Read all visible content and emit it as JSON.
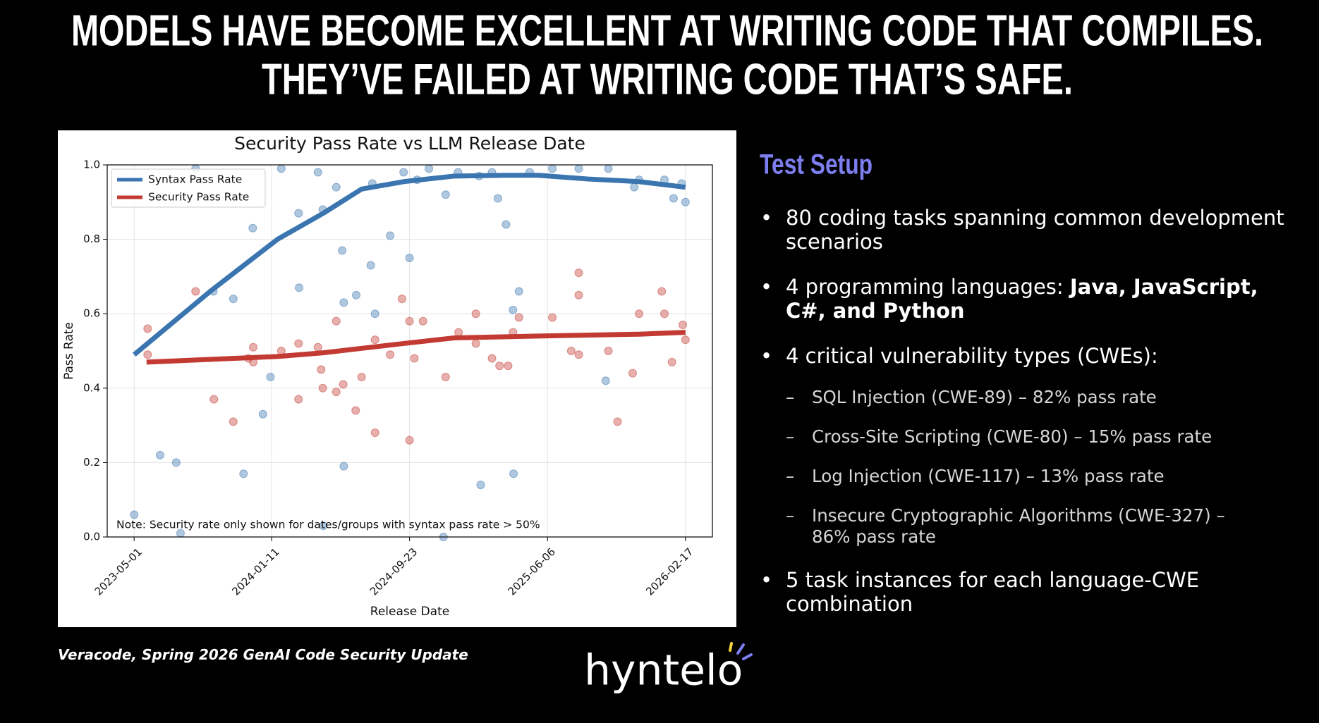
{
  "header": {
    "title": [
      "MODELS HAVE BECOME EXCELLENT AT WRITING CODE THAT COMPILES.",
      "THEY’VE FAILED AT WRITING CODE THAT’S SAFE."
    ]
  },
  "chart_data": {
    "type": "line",
    "title": "Security Pass Rate vs LLM Release Date",
    "xlabel": "Release Date",
    "ylabel": "Pass Rate",
    "annotation": "Note: Security rate only shown for dates/groups with syntax pass rate > 50%",
    "xlim": [
      "2023-03-12",
      "2026-04-08"
    ],
    "xticks": [
      "2023-05-01",
      "2024-01-11",
      "2024-09-23",
      "2025-06-06",
      "2026-02-17"
    ],
    "ylim": [
      0,
      1
    ],
    "yticks": [
      {
        "value": 0,
        "label": "0.0"
      },
      0.2,
      0.4,
      0.6,
      0.8,
      {
        "value": 1,
        "label": "1.0"
      }
    ],
    "grid": true,
    "legend": "upper left",
    "series": [
      {
        "name": "Syntax Pass Rate",
        "color": "#3a75b0",
        "x": [
          "2023-05-01",
          "2023-09-19",
          "2024-01-22",
          "2024-04-16",
          "2024-06-26",
          "2024-09-12",
          "2024-12-15",
          "2025-03-18",
          "2025-05-20",
          "2025-08-21",
          "2025-11-23",
          "2026-02-17"
        ],
        "values": [
          0.49,
          0.66,
          0.8,
          0.87,
          0.935,
          0.955,
          0.97,
          0.972,
          0.972,
          0.962,
          0.955,
          0.94
        ],
        "points": {
          "x": [
            "2023-05-01",
            "2023-06-18",
            "2023-07-18",
            "2023-07-26",
            "2023-08-23",
            "2023-09-25",
            "2023-11-01",
            "2023-11-20",
            "2023-12-07",
            "2023-12-26",
            "2024-01-09",
            "2024-01-29",
            "2024-03-02",
            "2024-03-01",
            "2024-04-06",
            "2024-04-15",
            "2024-04-16",
            "2024-05-10",
            "2024-05-21",
            "2024-05-24",
            "2024-05-24",
            "2024-06-16",
            "2024-07-13",
            "2024-07-21",
            "2024-07-16",
            "2024-08-18",
            "2024-09-23",
            "2024-09-12",
            "2024-10-07",
            "2024-10-29",
            "2024-11-29",
            "2024-12-22",
            "2025-01-30",
            "2025-02-02",
            "2025-02-23",
            "2025-03-06",
            "2025-03-21",
            "2025-04-03",
            "2025-04-04",
            "2025-04-14",
            "2025-05-04",
            "2025-06-15",
            "2025-08-03",
            "2025-09-22",
            "2025-09-27",
            "2025-11-14",
            "2025-11-23",
            "2026-01-09",
            "2026-01-26",
            "2026-02-17",
            "2026-02-10",
            "2024-11-25"
          ],
          "values": [
            0.06,
            0.22,
            0.2,
            0.01,
            0.99,
            0.66,
            0.64,
            0.17,
            0.83,
            0.33,
            0.43,
            0.99,
            0.67,
            0.87,
            0.98,
            0.88,
            0.03,
            0.94,
            0.77,
            0.19,
            0.63,
            0.65,
            0.73,
            0.6,
            0.95,
            0.81,
            0.75,
            0.98,
            0.96,
            0.99,
            0.92,
            0.98,
            0.97,
            0.14,
            0.98,
            0.91,
            0.84,
            0.61,
            0.17,
            0.66,
            0.98,
            0.99,
            0.99,
            0.42,
            0.99,
            0.94,
            0.96,
            0.96,
            0.91,
            0.9,
            0.95,
            0.0
          ]
        }
      },
      {
        "name": "Security Pass Rate",
        "color": "#c23a32",
        "x": [
          "2023-05-24",
          "2024-01-22",
          "2024-04-16",
          "2024-09-12",
          "2024-12-15",
          "2025-05-20",
          "2025-11-23",
          "2026-02-17"
        ],
        "values": [
          0.47,
          0.485,
          0.495,
          0.52,
          0.535,
          0.54,
          0.545,
          0.55
        ],
        "points": {
          "x": [
            "2023-05-26",
            "2023-05-26",
            "2023-08-23",
            "2023-09-26",
            "2023-11-01",
            "2023-11-29",
            "2023-12-08",
            "2023-12-08",
            "2024-01-29",
            "2024-03-01",
            "2024-03-01",
            "2024-04-06",
            "2024-04-12",
            "2024-04-15",
            "2024-05-10",
            "2024-05-10",
            "2024-05-23",
            "2024-06-15",
            "2024-06-26",
            "2024-07-21",
            "2024-07-21",
            "2024-08-18",
            "2024-09-09",
            "2024-09-23",
            "2024-09-23",
            "2024-10-02",
            "2024-10-18",
            "2024-11-29",
            "2024-12-23",
            "2025-01-24",
            "2025-01-24",
            "2025-02-23",
            "2025-03-09",
            "2025-03-25",
            "2025-04-03",
            "2025-04-14",
            "2025-06-15",
            "2025-07-20",
            "2025-08-03",
            "2025-08-03",
            "2025-08-03",
            "2025-09-27",
            "2025-10-14",
            "2025-11-11",
            "2025-11-23",
            "2026-01-04",
            "2026-01-09",
            "2026-01-23",
            "2026-02-12",
            "2026-02-17"
          ],
          "values": [
            0.56,
            0.49,
            0.66,
            0.37,
            0.31,
            0.48,
            0.51,
            0.47,
            0.5,
            0.52,
            0.37,
            0.51,
            0.45,
            0.4,
            0.58,
            0.39,
            0.41,
            0.34,
            0.43,
            0.28,
            0.53,
            0.49,
            0.64,
            0.26,
            0.58,
            0.48,
            0.58,
            0.43,
            0.55,
            0.6,
            0.52,
            0.48,
            0.46,
            0.46,
            0.55,
            0.59,
            0.59,
            0.5,
            0.71,
            0.65,
            0.49,
            0.5,
            0.31,
            0.44,
            0.6,
            0.66,
            0.6,
            0.47,
            0.57,
            0.53
          ]
        }
      }
    ]
  },
  "setup": {
    "title": "Test Setup",
    "bullets": [
      {
        "text": "80 coding tasks spanning common development scenarios"
      },
      {
        "text": "4 programming languages: ",
        "bold": "Java, JavaScript, C#, and Python"
      },
      {
        "text": "4 critical vulnerability types (CWEs):",
        "sub": [
          "SQL Injection (CWE-89) – 82% pass rate",
          "Cross-Site Scripting (CWE-80) – 15% pass rate",
          "Log Injection (CWE-117) – 13% pass rate",
          "Insecure Cryptographic Algorithms (CWE-327) – 86% pass rate"
        ]
      },
      {
        "text": "5 task instances for each language-CWE combination"
      }
    ]
  },
  "source": "Veracode, Spring 2026 GenAI Code Security Update",
  "logo": "hyntelo"
}
